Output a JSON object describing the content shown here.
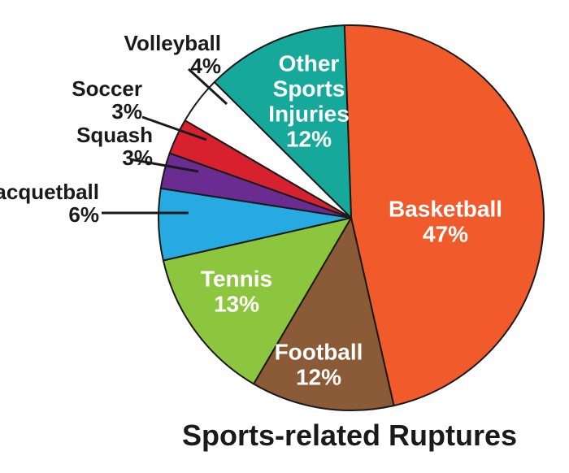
{
  "chart_data": {
    "type": "pie",
    "title": "Sports-related Ruptures",
    "slices": [
      {
        "name": "Basketball",
        "label": "47%",
        "value": 47,
        "color": "#f15a2b",
        "text_color": "#ffffff",
        "placement": "inside"
      },
      {
        "name": "Football",
        "label": "12%",
        "value": 12,
        "color": "#8b5a36",
        "text_color": "#ffffff",
        "placement": "inside"
      },
      {
        "name": "Tennis",
        "label": "13%",
        "value": 13,
        "color": "#8cc63f",
        "text_color": "#ffffff",
        "placement": "inside"
      },
      {
        "name": "Racquetball",
        "label": "6%",
        "value": 6,
        "color": "#27aae1",
        "text_color": "#1a1a1a",
        "placement": "outside"
      },
      {
        "name": "Squash",
        "label": "3%",
        "value": 3,
        "color": "#6a2c91",
        "text_color": "#1a1a1a",
        "placement": "outside"
      },
      {
        "name": "Soccer",
        "label": "3%",
        "value": 3,
        "color": "#d8212f",
        "text_color": "#1a1a1a",
        "placement": "outside"
      },
      {
        "name": "Volleyball",
        "label": "4%",
        "value": 4,
        "color": "#ffffff",
        "text_color": "#1a1a1a",
        "placement": "outside"
      },
      {
        "name": "Other Sports Injuries",
        "label": "12%",
        "value": 12,
        "color": "#16a99b",
        "text_color": "#ffffff",
        "placement": "inside"
      }
    ]
  }
}
